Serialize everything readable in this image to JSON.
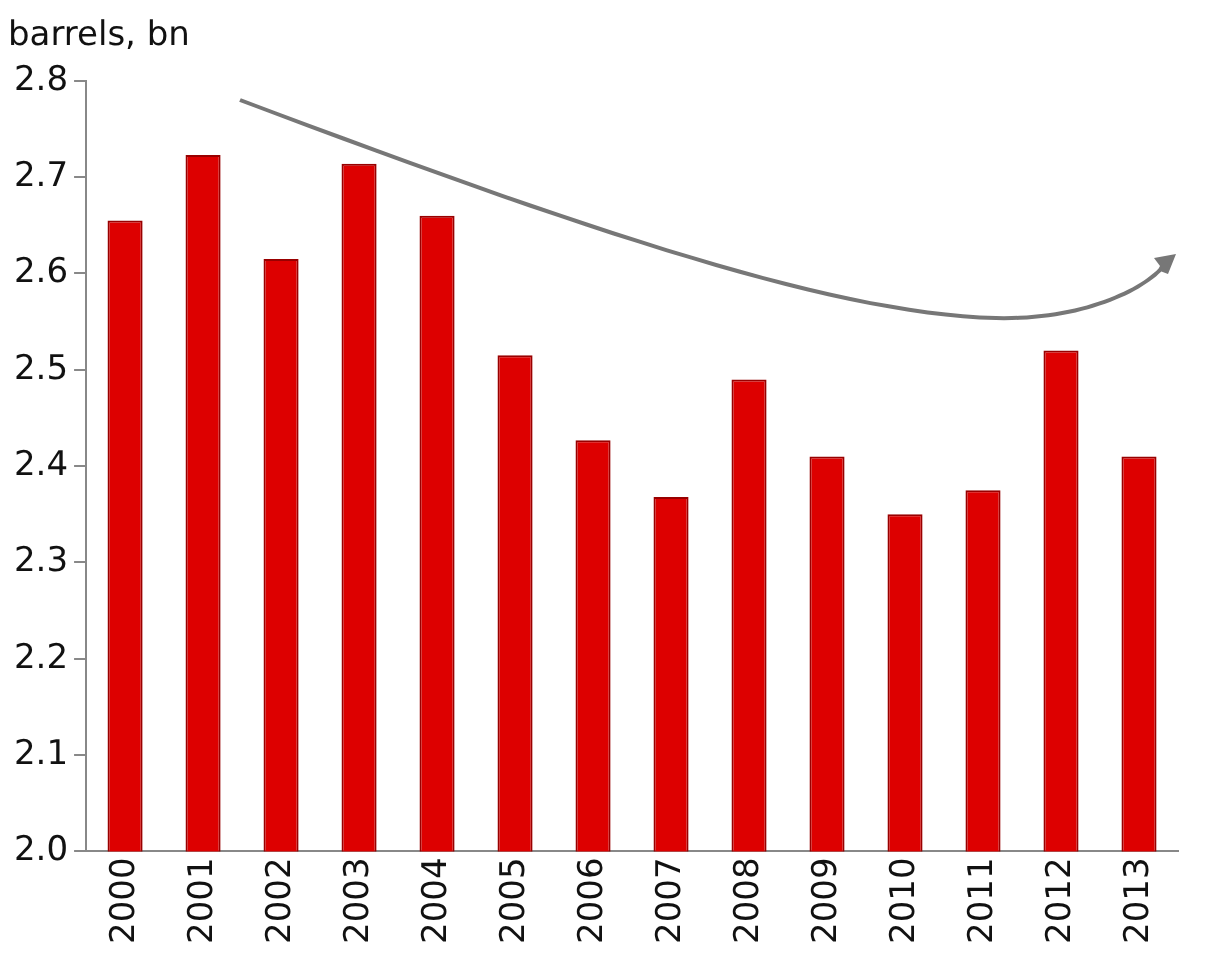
{
  "chart_data": {
    "type": "bar",
    "ylabel": "barrels, bn",
    "categories": [
      "2000",
      "2001",
      "2002",
      "2003",
      "2004",
      "2005",
      "2006",
      "2007",
      "2008",
      "2009",
      "2010",
      "2011",
      "2012",
      "2013"
    ],
    "values": [
      2.655,
      2.723,
      2.615,
      2.714,
      2.66,
      2.515,
      2.427,
      2.368,
      2.49,
      2.41,
      2.35,
      2.375,
      2.52,
      2.41
    ],
    "color": "#dd0000",
    "ylim": [
      2.0,
      2.8
    ],
    "yticks": [
      {
        "value": 2.0,
        "label": "2.0"
      },
      2.1,
      2.2,
      2.3,
      2.4,
      2.5,
      2.6,
      2.7,
      2.8
    ],
    "grid": false,
    "legend": false
  }
}
